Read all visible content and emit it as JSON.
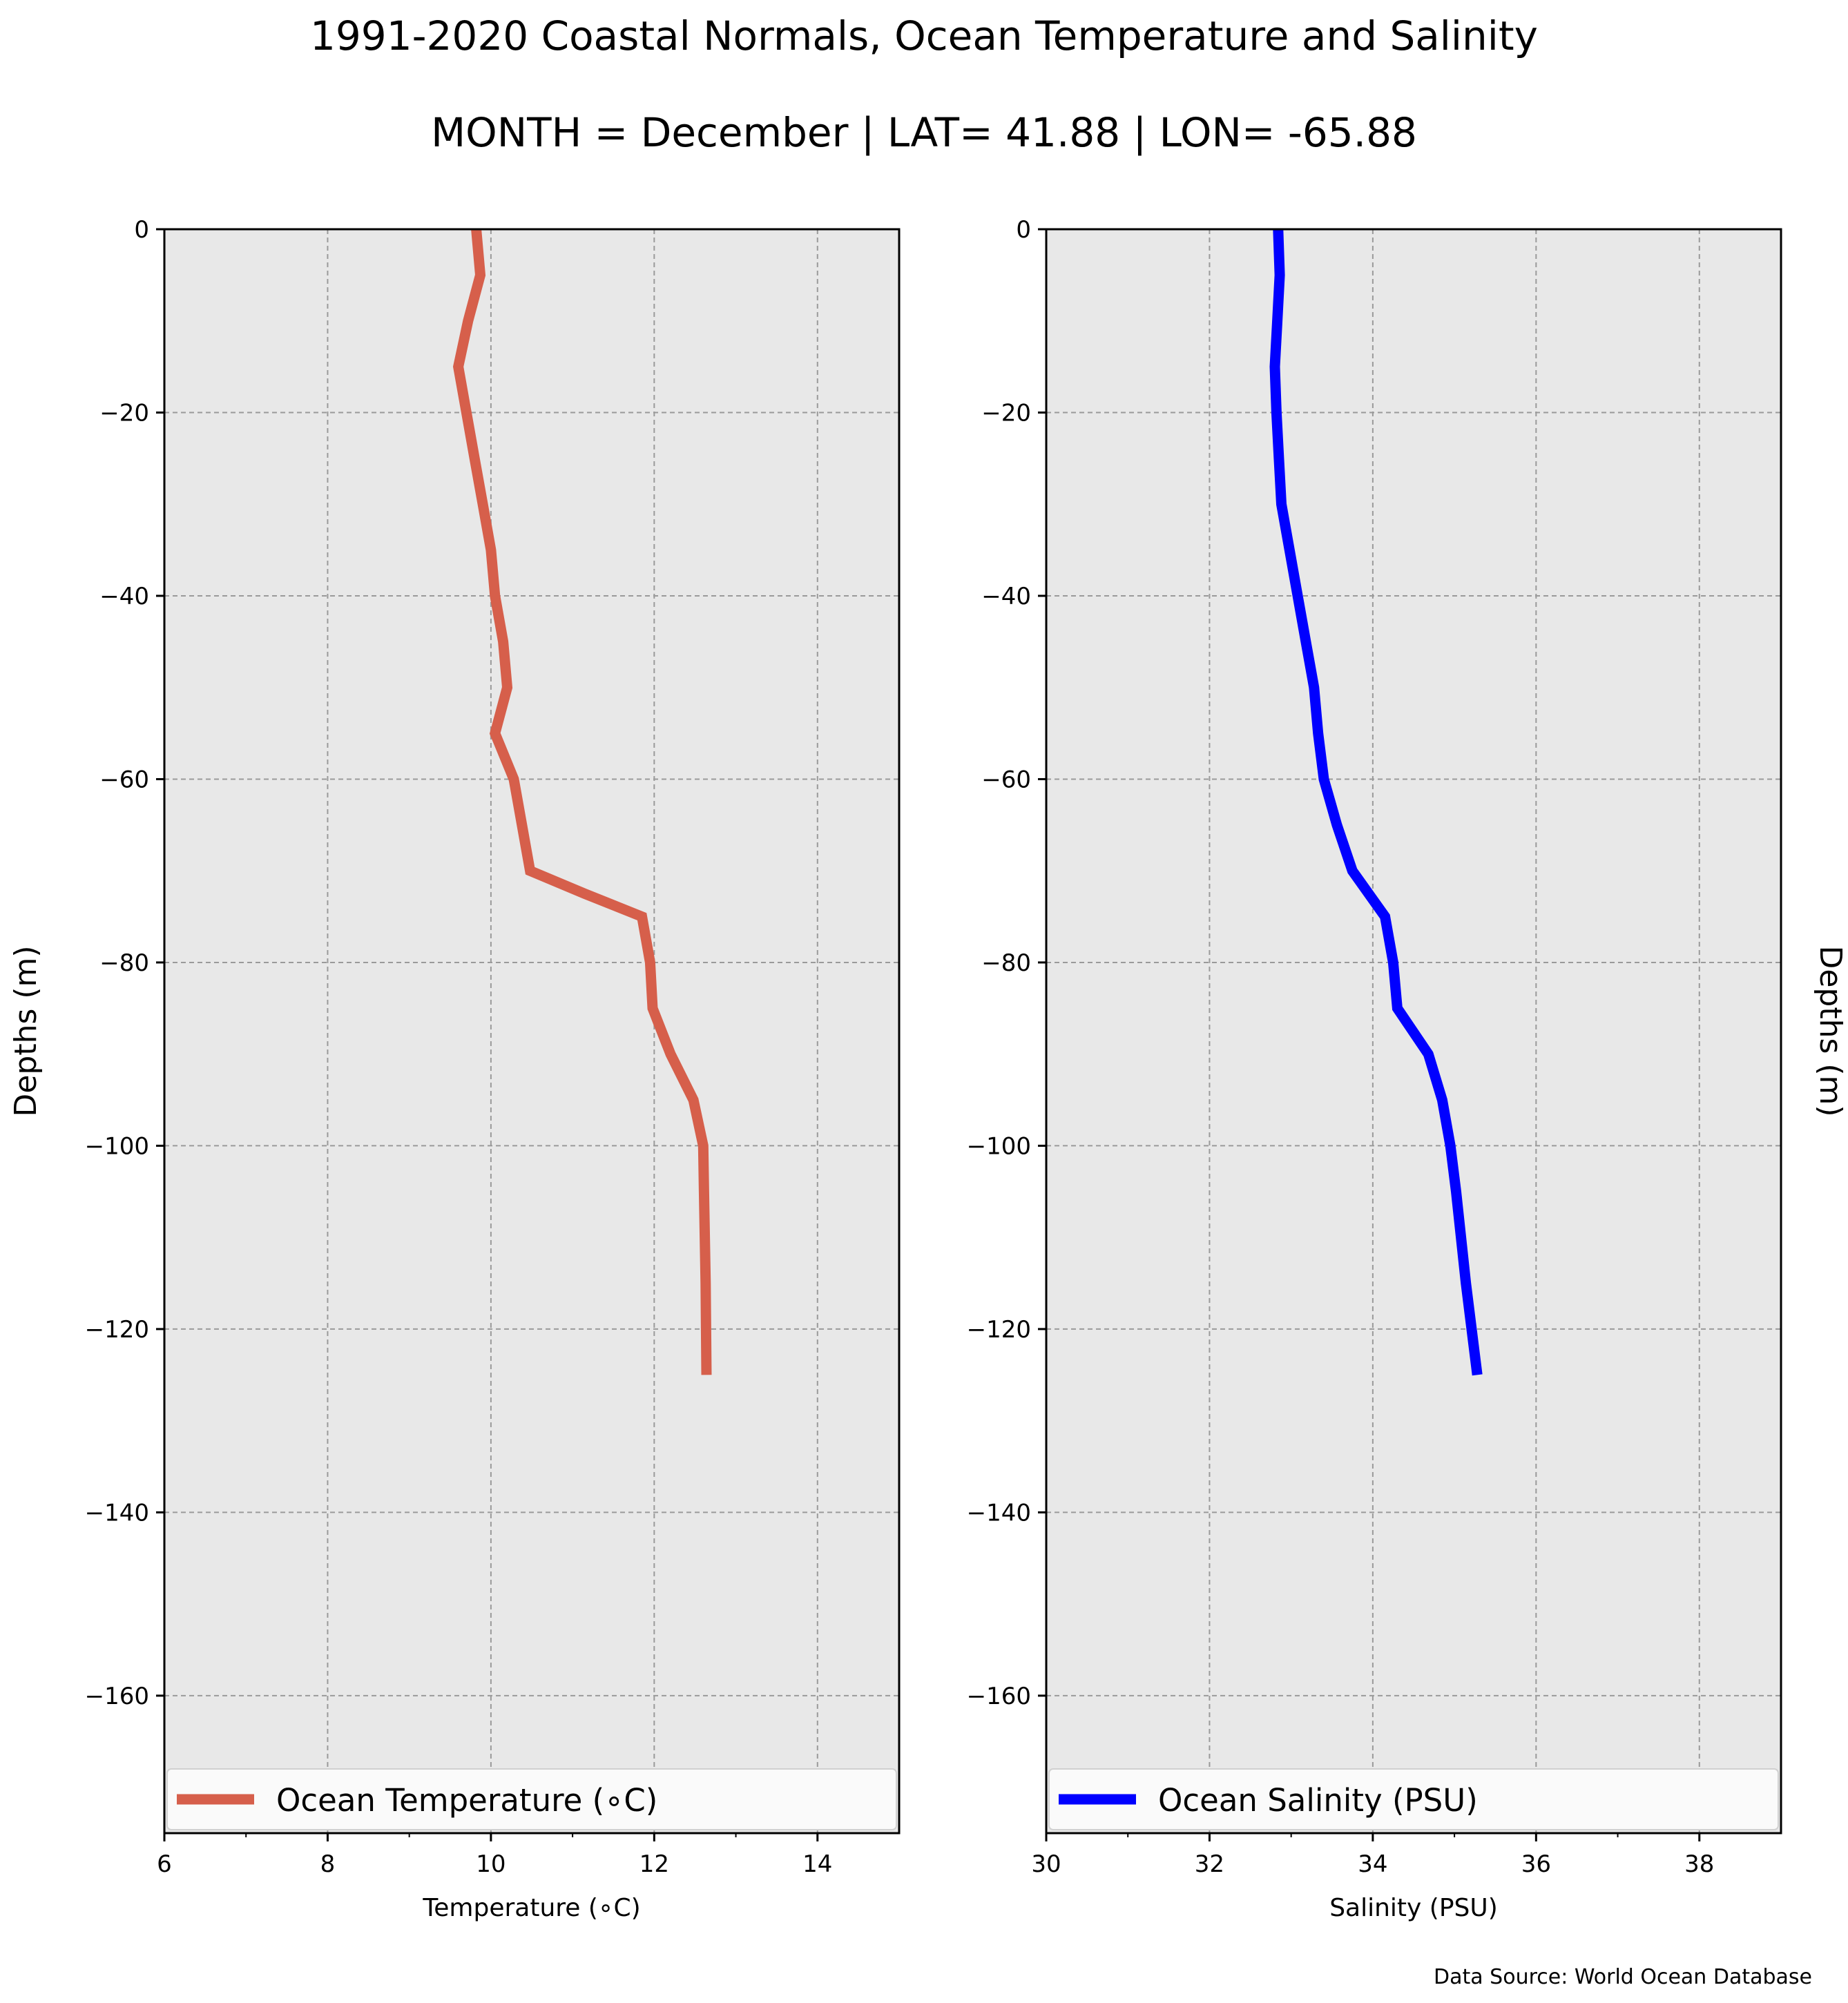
{
  "title": "1991-2020 Coastal Normals, Ocean Temperature and Salinity",
  "subtitle": "MONTH = December | LAT= 41.88 | LON= -65.88",
  "source_note": "Data Source: World Ocean Database",
  "chart_data": [
    {
      "type": "line",
      "xlabel": "Temperature (∘C)",
      "ylabel": "Depths (m)",
      "xlim": [
        6,
        15
      ],
      "ylim": [
        -175,
        0
      ],
      "xticks": [
        6,
        8,
        10,
        12,
        14
      ],
      "xtick_labels": [
        "6",
        "8",
        "10",
        "12",
        "14"
      ],
      "yticks": [
        0,
        -20,
        -40,
        -60,
        -80,
        -100,
        -120,
        -140,
        -160
      ],
      "ytick_labels": [
        "0",
        "−20",
        "−40",
        "−60",
        "−80",
        "−100",
        "−120",
        "−140",
        "−160"
      ],
      "grid": true,
      "legend": "bottom",
      "color": "#d65f4b",
      "series": [
        {
          "name": "Ocean Temperature (∘C)",
          "x": [
            9.82,
            9.87,
            9.72,
            9.6,
            9.7,
            9.8,
            9.9,
            10.0,
            10.05,
            10.15,
            10.2,
            10.05,
            10.28,
            10.38,
            10.48,
            11.15,
            11.85,
            11.95,
            11.98,
            12.2,
            12.48,
            12.6,
            12.61,
            12.62,
            12.63,
            12.64
          ],
          "y": [
            0,
            -5,
            -10,
            -15,
            -20,
            -25,
            -30,
            -35,
            -40,
            -45,
            -50,
            -55,
            -60,
            -65,
            -70,
            -72.5,
            -75,
            -80,
            -85,
            -90,
            -95,
            -100,
            -105,
            -110,
            -115,
            -125
          ]
        }
      ]
    },
    {
      "type": "line",
      "xlabel": "Salinity (PSU)",
      "ylabel": "Depths (m)",
      "xlim": [
        30,
        39
      ],
      "ylim": [
        -175,
        0
      ],
      "xticks": [
        30,
        32,
        34,
        36,
        38
      ],
      "xtick_labels": [
        "30",
        "32",
        "34",
        "36",
        "38"
      ],
      "yticks": [
        0,
        -20,
        -40,
        -60,
        -80,
        -100,
        -120,
        -140,
        -160
      ],
      "ytick_labels": [
        "0",
        "−20",
        "−40",
        "−60",
        "−80",
        "−100",
        "−120",
        "−140",
        "−160"
      ],
      "grid": true,
      "legend": "bottom",
      "color": "#0000ff",
      "series": [
        {
          "name": "Ocean Salinity (PSU)",
          "x": [
            32.84,
            32.86,
            32.83,
            32.8,
            32.82,
            32.85,
            32.88,
            32.98,
            33.08,
            33.18,
            33.28,
            33.33,
            33.4,
            33.56,
            33.75,
            34.15,
            34.25,
            34.3,
            34.68,
            34.85,
            34.95,
            35.02,
            35.08,
            35.14,
            35.28
          ],
          "y": [
            0,
            -5,
            -10,
            -15,
            -20,
            -25,
            -30,
            -35,
            -40,
            -45,
            -50,
            -55,
            -60,
            -65,
            -70,
            -75,
            -80,
            -85,
            -90,
            -95,
            -100,
            -105,
            -110,
            -115,
            -125
          ]
        }
      ]
    }
  ]
}
